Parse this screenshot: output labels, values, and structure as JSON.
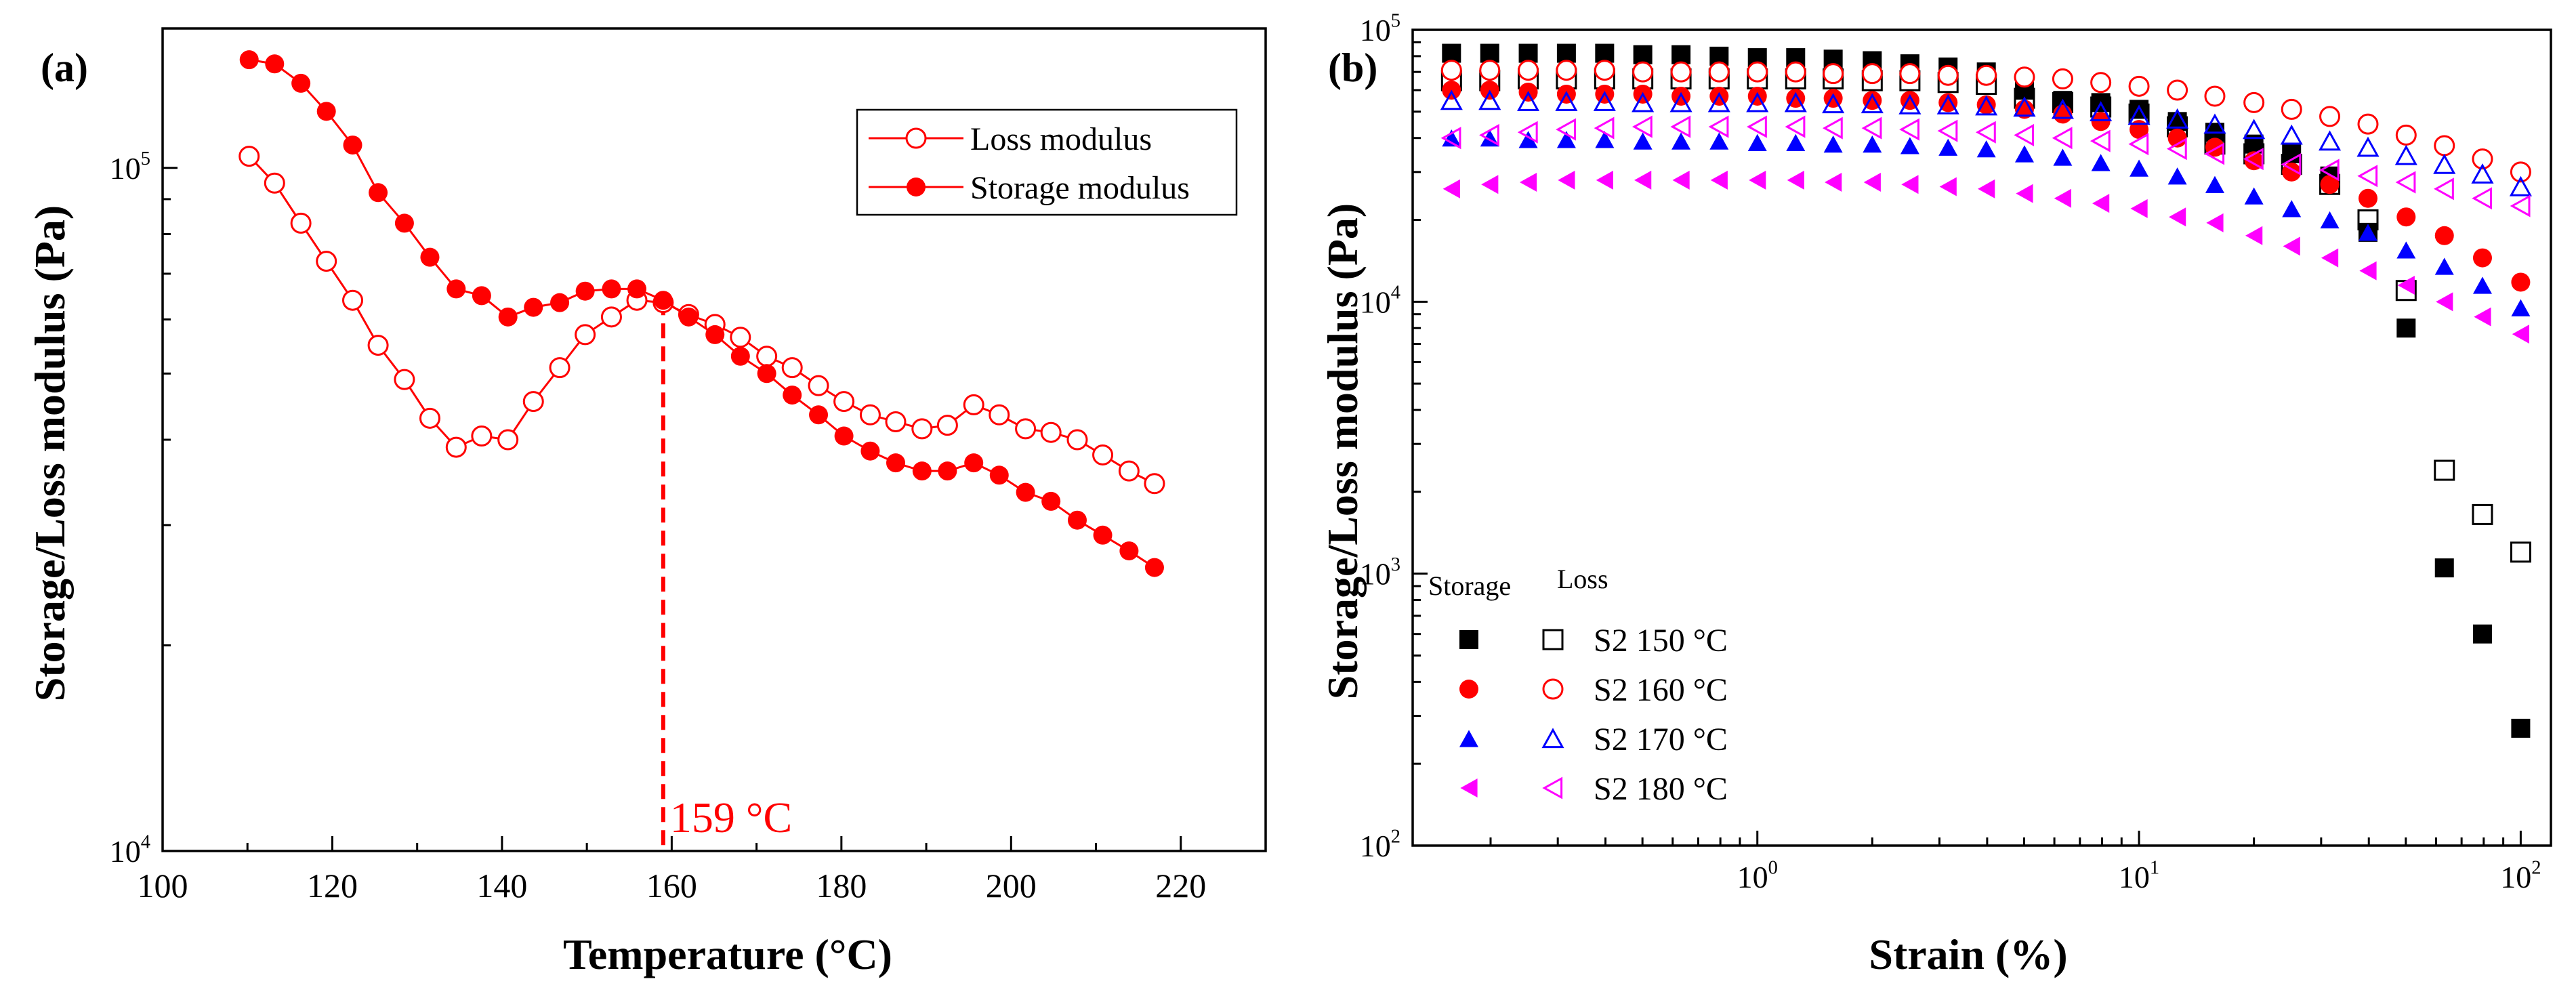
{
  "chart_data": [
    {
      "panel": "(a)",
      "type": "line",
      "xlabel": "Temperature (°C)",
      "ylabel": "Storage/Loss modulus (Pa)",
      "xlim": [
        100,
        230
      ],
      "xticks": [
        100,
        120,
        140,
        160,
        180,
        200,
        220
      ],
      "yscale": "log",
      "ylim": [
        10000,
        160000
      ],
      "yticks": [
        {
          "value": 10000,
          "base": "10",
          "exp": "4"
        },
        {
          "value": 100000,
          "base": "10",
          "exp": "5"
        }
      ],
      "annotation": {
        "x": 159,
        "label": "159 °C",
        "color": "#ff0000"
      },
      "legend": {
        "position": "top-right",
        "entries": [
          "Loss modulus",
          "Storage modulus"
        ]
      },
      "series": [
        {
          "name": "Loss modulus",
          "marker": "open-circle",
          "color": "#ff0000",
          "x": [
            110.2,
            113.2,
            116.3,
            119.3,
            122.4,
            125.4,
            128.5,
            131.5,
            134.6,
            137.6,
            140.7,
            143.7,
            146.8,
            149.8,
            152.9,
            155.9,
            159.0,
            162.0,
            165.1,
            168.1,
            171.2,
            174.2,
            177.3,
            180.3,
            183.4,
            186.4,
            189.5,
            192.5,
            195.6,
            198.6,
            201.7,
            204.7,
            207.8,
            210.8,
            213.9,
            216.9
          ],
          "y": [
            104000,
            95000,
            83000,
            73000,
            64000,
            55000,
            49000,
            43000,
            39000,
            40500,
            40000,
            45500,
            51000,
            57000,
            60500,
            64000,
            63500,
            61000,
            59000,
            56500,
            53000,
            51000,
            48000,
            45500,
            43500,
            42500,
            41500,
            42000,
            45000,
            43500,
            41500,
            41000,
            40000,
            38000,
            36000,
            34500
          ]
        },
        {
          "name": "Storage modulus",
          "marker": "filled-circle",
          "color": "#ff0000",
          "x": [
            110.2,
            113.2,
            116.3,
            119.3,
            122.4,
            125.4,
            128.5,
            131.5,
            134.6,
            137.6,
            140.7,
            143.7,
            146.8,
            149.8,
            152.9,
            155.9,
            159.0,
            162.0,
            165.1,
            168.1,
            171.2,
            174.2,
            177.3,
            180.3,
            183.4,
            186.4,
            189.5,
            192.5,
            195.6,
            198.6,
            201.7,
            204.7,
            207.8,
            210.8,
            213.9,
            216.9
          ],
          "y": [
            144000,
            142000,
            133000,
            121000,
            108000,
            92000,
            83000,
            74000,
            66500,
            65000,
            60500,
            62500,
            63500,
            66000,
            66500,
            66500,
            64000,
            60500,
            57000,
            53000,
            50000,
            46500,
            43500,
            40500,
            38500,
            37000,
            36000,
            36000,
            37000,
            35500,
            33500,
            32500,
            30500,
            29000,
            27500,
            26000
          ]
        }
      ]
    },
    {
      "panel": "(b)",
      "type": "scatter",
      "xlabel": "Strain (%)",
      "ylabel": "Storage/Loss modulus (Pa)",
      "xscale": "log",
      "xlim": [
        0.125,
        120
      ],
      "xticks": [
        {
          "value": 1,
          "base": "10",
          "exp": "0"
        },
        {
          "value": 10,
          "base": "10",
          "exp": "1"
        },
        {
          "value": 100,
          "base": "10",
          "exp": "2"
        }
      ],
      "yscale": "log",
      "ylim": [
        100,
        100000
      ],
      "yticks": [
        {
          "value": 100,
          "base": "10",
          "exp": "2"
        },
        {
          "value": 1000,
          "base": "10",
          "exp": "3"
        },
        {
          "value": 10000,
          "base": "10",
          "exp": "4"
        },
        {
          "value": 100000,
          "base": "10",
          "exp": "5"
        }
      ],
      "legend": {
        "position": "bottom-left",
        "header_storage": "Storage",
        "header_loss": "Loss",
        "entries": [
          "S2 150 °C",
          "S2 160 °C",
          "S2 170 °C",
          "S2 180 °C"
        ]
      },
      "strain": [
        0.158,
        0.199,
        0.251,
        0.316,
        0.398,
        0.501,
        0.631,
        0.794,
        1.0,
        1.26,
        1.58,
        2.0,
        2.51,
        3.16,
        3.98,
        5.01,
        6.31,
        7.94,
        10.0,
        12.6,
        15.8,
        20.0,
        25.1,
        31.6,
        39.8,
        50.1,
        63.1,
        79.4,
        100.0
      ],
      "series": [
        {
          "name": "S2 150 °C",
          "kind": "Storage",
          "marker": "filled-square",
          "color": "#000000",
          "strain": [
            0.158,
            0.199,
            0.251,
            0.316,
            0.398,
            0.501,
            0.631,
            0.794,
            1.0,
            1.26,
            1.58,
            2.0,
            2.51,
            3.16,
            3.98,
            5.01,
            6.31,
            7.94,
            10.0,
            12.6,
            15.8,
            20.0,
            25.1,
            31.6,
            39.8,
            50.1,
            63.1,
            79.4,
            100.0
          ],
          "values": [
            82000,
            82000,
            82000,
            82000,
            82000,
            81000,
            81000,
            80000,
            79000,
            79000,
            78000,
            77000,
            75000,
            73000,
            70000,
            60000,
            55000,
            54000,
            51000,
            46000,
            42000,
            38000,
            35000,
            29000,
            18000,
            8000,
            1050,
            600,
            270
          ]
        },
        {
          "name": "S2 150 °C",
          "kind": "Loss",
          "marker": "open-square",
          "color": "#000000",
          "strain": [
            0.158,
            0.199,
            0.251,
            0.316,
            0.398,
            0.501,
            0.631,
            0.794,
            1.0,
            1.26,
            1.58,
            2.0,
            2.51,
            3.16,
            3.98,
            5.01,
            6.31,
            7.94,
            10.0,
            12.6,
            15.8,
            20.0,
            25.1,
            31.6,
            39.8,
            50.1,
            63.1,
            79.4,
            100.0
          ],
          "values": [
            65000,
            65000,
            66000,
            66000,
            66000,
            66000,
            66000,
            66000,
            66000,
            66000,
            66000,
            65000,
            65000,
            64000,
            63000,
            56000,
            54000,
            52000,
            49000,
            44000,
            38000,
            35000,
            32000,
            27000,
            20000,
            11000,
            2400,
            1650,
            1200
          ]
        },
        {
          "name": "S2 160 °C",
          "kind": "Storage",
          "marker": "filled-circle",
          "color": "#ff0000",
          "strain": [
            0.158,
            0.199,
            0.251,
            0.316,
            0.398,
            0.501,
            0.631,
            0.794,
            1.0,
            1.26,
            1.58,
            2.0,
            2.51,
            3.16,
            3.98,
            5.01,
            6.31,
            7.94,
            10.0,
            12.6,
            15.8,
            20.0,
            25.1,
            31.6,
            39.8,
            50.1,
            63.1,
            79.4,
            100.0
          ],
          "values": [
            60000,
            60000,
            59000,
            58000,
            58000,
            58000,
            57000,
            57000,
            57000,
            56000,
            56000,
            55000,
            55000,
            54000,
            53000,
            51000,
            49000,
            46000,
            43000,
            40000,
            37000,
            33000,
            30000,
            27000,
            24000,
            20500,
            17500,
            14500,
            11800
          ]
        },
        {
          "name": "S2 160 °C",
          "kind": "Loss",
          "marker": "open-circle",
          "color": "#ff0000",
          "strain": [
            0.158,
            0.199,
            0.251,
            0.316,
            0.398,
            0.501,
            0.631,
            0.794,
            1.0,
            1.26,
            1.58,
            2.0,
            2.51,
            3.16,
            3.98,
            5.01,
            6.31,
            7.94,
            10.0,
            12.6,
            15.8,
            20.0,
            25.1,
            31.6,
            39.8,
            50.1,
            63.1,
            79.4,
            100.0
          ],
          "values": [
            71000,
            71000,
            71000,
            71000,
            71000,
            70000,
            70000,
            70000,
            70000,
            70000,
            69000,
            69000,
            69000,
            68000,
            68000,
            67000,
            66000,
            64000,
            62000,
            60000,
            57000,
            54000,
            51000,
            48000,
            45000,
            41000,
            37500,
            33500,
            30000
          ]
        },
        {
          "name": "S2 170 °C",
          "kind": "Storage",
          "marker": "filled-triangle-up",
          "color": "#0000ff",
          "strain": [
            0.158,
            0.199,
            0.251,
            0.316,
            0.398,
            0.501,
            0.631,
            0.794,
            1.0,
            1.26,
            1.58,
            2.0,
            2.51,
            3.16,
            3.98,
            5.01,
            6.31,
            7.94,
            10.0,
            12.6,
            15.8,
            20.0,
            25.1,
            31.6,
            39.8,
            50.1,
            63.1,
            79.4,
            100.0
          ],
          "values": [
            40000,
            40000,
            39500,
            39500,
            39500,
            39000,
            39000,
            39000,
            38500,
            38500,
            38000,
            38000,
            37500,
            37000,
            36500,
            35000,
            34000,
            32500,
            31000,
            29000,
            27000,
            24500,
            22000,
            20000,
            18000,
            15500,
            13500,
            11500,
            9500
          ]
        },
        {
          "name": "S2 170 °C",
          "kind": "Loss",
          "marker": "open-triangle-up",
          "color": "#0000ff",
          "strain": [
            0.158,
            0.199,
            0.251,
            0.316,
            0.398,
            0.501,
            0.631,
            0.794,
            1.0,
            1.26,
            1.58,
            2.0,
            2.51,
            3.16,
            3.98,
            5.01,
            6.31,
            7.94,
            10.0,
            12.6,
            15.8,
            20.0,
            25.1,
            31.6,
            39.8,
            50.1,
            63.1,
            79.4,
            100.0
          ],
          "values": [
            55000,
            55000,
            54500,
            54500,
            54500,
            54000,
            54000,
            54000,
            54000,
            54000,
            53500,
            53500,
            53000,
            53000,
            52500,
            52000,
            51000,
            50000,
            48500,
            47000,
            45000,
            43000,
            41000,
            39000,
            37000,
            34500,
            32000,
            29500,
            26500
          ]
        },
        {
          "name": "S2 180 °C",
          "kind": "Storage",
          "marker": "filled-triangle-left",
          "color": "#ff00ff",
          "strain": [
            0.158,
            0.199,
            0.251,
            0.316,
            0.398,
            0.501,
            0.631,
            0.794,
            1.0,
            1.26,
            1.58,
            2.0,
            2.51,
            3.16,
            3.98,
            5.01,
            6.31,
            7.94,
            10.0,
            12.6,
            15.8,
            20.0,
            25.1,
            31.6,
            39.8,
            50.1,
            63.1,
            79.4,
            100.0
          ],
          "values": [
            26000,
            27000,
            27500,
            28000,
            28000,
            28000,
            28000,
            28000,
            28000,
            28000,
            27500,
            27500,
            27000,
            26500,
            26000,
            25000,
            24000,
            23000,
            22000,
            20500,
            19500,
            17500,
            16000,
            14500,
            13000,
            11500,
            10000,
            8800,
            7600
          ]
        },
        {
          "name": "S2 180 °C",
          "kind": "Loss",
          "marker": "open-triangle-left",
          "color": "#ff00ff",
          "strain": [
            0.158,
            0.199,
            0.251,
            0.316,
            0.398,
            0.501,
            0.631,
            0.794,
            1.0,
            1.26,
            1.58,
            2.0,
            2.51,
            3.16,
            3.98,
            5.01,
            6.31,
            7.94,
            10.0,
            12.6,
            15.8,
            20.0,
            25.1,
            31.6,
            39.8,
            50.1,
            63.1,
            79.4,
            100.0
          ],
          "values": [
            40000,
            41000,
            42000,
            43000,
            43500,
            44000,
            44000,
            44000,
            44000,
            44000,
            43500,
            43500,
            43000,
            42500,
            42000,
            41000,
            40000,
            39000,
            38000,
            36500,
            35000,
            33500,
            32000,
            30500,
            29000,
            27500,
            26000,
            24000,
            22500
          ]
        }
      ]
    }
  ]
}
